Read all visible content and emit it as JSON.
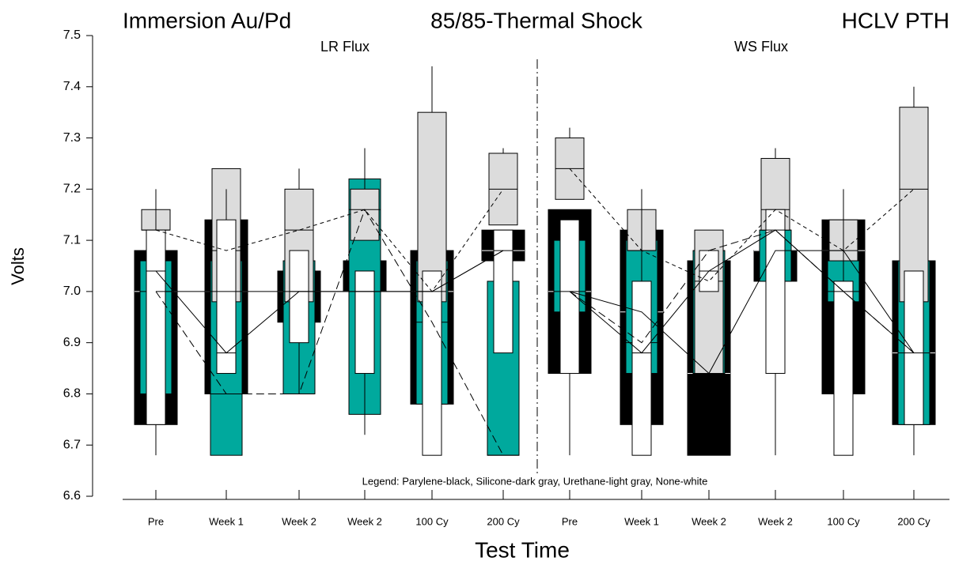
{
  "chart_data": {
    "type": "box",
    "titles": [
      "Immersion Au/Pd",
      "85/85-Thermal Shock",
      "HCLV PTH"
    ],
    "xlabel": "Test Time",
    "ylabel": "Volts",
    "note": "Legend: Parylene-black, Silicone-dark gray, Urethane-light gray, None-white",
    "panels": [
      {
        "label": "LR Flux",
        "categories": [
          "Pre",
          "Week 1",
          "Week 2",
          "Week 2",
          "100 Cy",
          "200 Cy"
        ]
      },
      {
        "label": "WS Flux",
        "categories": [
          "Pre",
          "Week 1",
          "Week 2",
          "Week 2",
          "100 Cy",
          "200 Cy"
        ]
      }
    ],
    "ylim": [
      6.6,
      7.5
    ],
    "yticks": [
      6.6,
      6.7,
      6.8,
      6.9,
      {
        "value": 7,
        "label": "7.0"
      },
      7.1,
      7.2,
      7.3,
      7.4,
      7.5
    ],
    "series": [
      {
        "color": "#000000",
        "line": "solid",
        "min": [
          6.74,
          6.8,
          6.94,
          7.0,
          6.78,
          7.06,
          6.84,
          6.74,
          6.68,
          7.02,
          6.8,
          6.74
        ],
        "q1": [
          6.74,
          6.8,
          6.94,
          7.0,
          6.78,
          7.06,
          6.84,
          6.74,
          6.68,
          7.02,
          6.8,
          6.74
        ],
        "median": [
          7.0,
          7.0,
          7.0,
          7.0,
          7.0,
          7.08,
          7.0,
          6.96,
          6.84,
          7.08,
          7.08,
          6.88
        ],
        "q3": [
          7.08,
          7.14,
          7.04,
          7.06,
          7.08,
          7.12,
          7.16,
          7.12,
          7.06,
          7.08,
          7.14,
          7.06
        ],
        "max": [
          7.08,
          7.14,
          7.04,
          7.06,
          7.08,
          7.12,
          7.16,
          7.12,
          7.06,
          7.08,
          7.14,
          7.06
        ]
      },
      {
        "color": "#00a99d",
        "line": "dashed",
        "min": [
          6.8,
          6.68,
          6.8,
          6.76,
          6.78,
          6.68,
          6.96,
          6.84,
          6.84,
          7.02,
          6.98,
          6.74
        ],
        "q1": [
          6.8,
          6.68,
          6.8,
          6.76,
          6.78,
          6.68,
          6.96,
          6.84,
          6.84,
          7.02,
          6.98,
          6.74
        ],
        "median": [
          7.0,
          6.8,
          6.8,
          7.16,
          6.94,
          6.68,
          7.0,
          6.9,
          7.08,
          7.12,
          7.0,
          6.88
        ],
        "q3": [
          7.06,
          7.06,
          7.06,
          7.22,
          7.06,
          7.02,
          7.1,
          7.1,
          7.08,
          7.12,
          7.06,
          7.06
        ],
        "max": [
          7.06,
          7.06,
          7.06,
          7.22,
          7.06,
          7.02,
          7.1,
          7.1,
          7.08,
          7.12,
          7.06,
          7.06
        ]
      },
      {
        "color": "#dcdcdc",
        "line": "dotted",
        "min": [
          7.12,
          6.98,
          6.98,
          7.1,
          6.98,
          7.13,
          7.18,
          7.08,
          6.84,
          7.12,
          7.06,
          6.98
        ],
        "q1": [
          7.12,
          6.98,
          6.98,
          7.1,
          6.98,
          7.13,
          7.18,
          7.08,
          6.84,
          7.12,
          7.06,
          6.98
        ],
        "median": [
          7.12,
          7.08,
          7.12,
          7.16,
          7.0,
          7.2,
          7.24,
          7.08,
          7.02,
          7.16,
          7.08,
          7.2
        ],
        "q3": [
          7.16,
          7.24,
          7.2,
          7.2,
          7.35,
          7.27,
          7.3,
          7.16,
          7.12,
          7.26,
          7.14,
          7.36
        ],
        "max": [
          7.16,
          7.24,
          7.24,
          7.28,
          7.44,
          7.28,
          7.32,
          7.16,
          7.12,
          7.28,
          7.14,
          7.4
        ]
      },
      {
        "color": "#ffffff",
        "line": "solid",
        "min": [
          6.68,
          6.84,
          6.8,
          6.72,
          6.68,
          6.88,
          6.68,
          6.68,
          7.0,
          6.68,
          6.68,
          6.68
        ],
        "q1": [
          6.74,
          6.84,
          6.9,
          6.84,
          6.68,
          6.88,
          6.84,
          6.68,
          7.0,
          6.84,
          6.68,
          6.74
        ],
        "median": [
          7.04,
          6.88,
          7.0,
          7.0,
          7.0,
          7.08,
          7.0,
          6.88,
          7.04,
          7.12,
          7.0,
          6.88
        ],
        "q3": [
          7.12,
          7.14,
          7.08,
          7.04,
          7.04,
          7.12,
          7.14,
          7.02,
          7.08,
          7.16,
          7.02,
          7.04
        ],
        "max": [
          7.2,
          7.2,
          7.08,
          7.04,
          7.04,
          7.12,
          7.14,
          7.2,
          7.08,
          7.16,
          7.2,
          7.04
        ]
      }
    ]
  }
}
